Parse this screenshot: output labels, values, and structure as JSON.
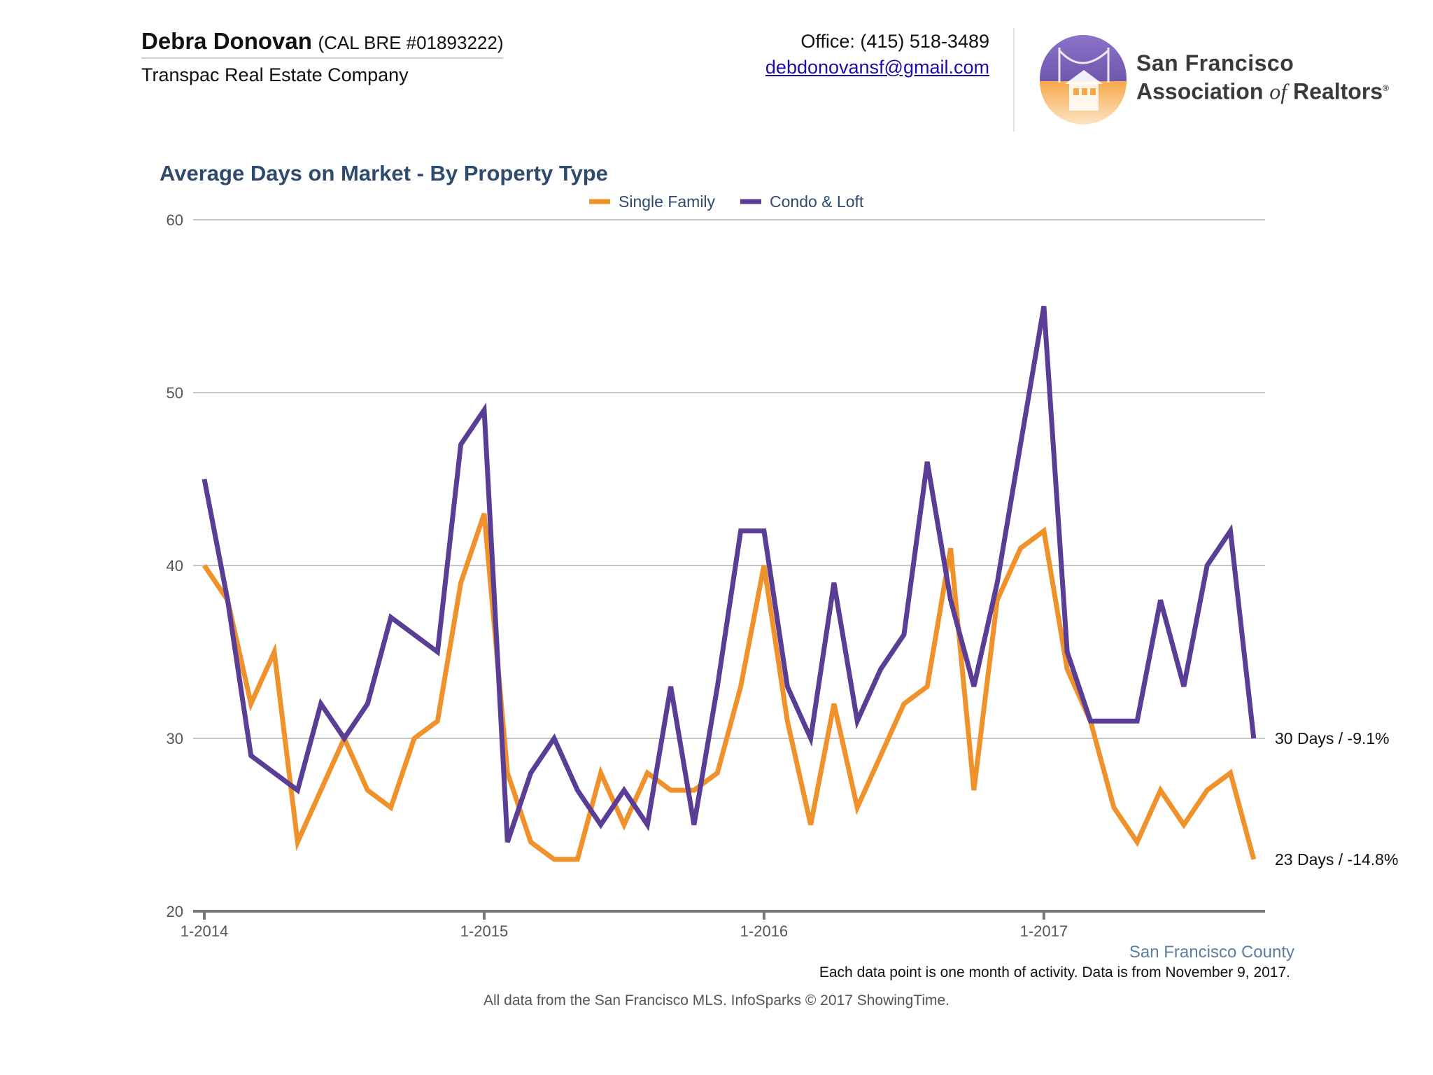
{
  "header": {
    "agent_name": "Debra Donovan",
    "agent_license": "(CAL BRE #01893222)",
    "company": "Transpac Real Estate Company",
    "office_phone": "Office: (415) 518-3489",
    "email": "debdonovansf@gmail.com",
    "logo_line1": "San Francisco",
    "logo_line2_a": "Association",
    "logo_line2_of": "of",
    "logo_line2_b": "Realtors",
    "logo_reg": "®"
  },
  "colors": {
    "single_family": "#f0922b",
    "condo_loft": "#5a3d94",
    "title": "#2e4b6d",
    "region": "#5b7fa3",
    "grid": "#c6c6c6",
    "axis": "#777777"
  },
  "chart_data": {
    "type": "line",
    "title": "Average Days on Market - By Property Type",
    "region_label": "San Francisco County",
    "ylim": [
      20,
      60
    ],
    "yticks": [
      20,
      30,
      40,
      50,
      60
    ],
    "x": [
      "1-2014",
      "2-2014",
      "3-2014",
      "4-2014",
      "5-2014",
      "6-2014",
      "7-2014",
      "8-2014",
      "9-2014",
      "10-2014",
      "11-2014",
      "12-2014",
      "1-2015",
      "2-2015",
      "3-2015",
      "4-2015",
      "5-2015",
      "6-2015",
      "7-2015",
      "8-2015",
      "9-2015",
      "10-2015",
      "11-2015",
      "12-2015",
      "1-2016",
      "2-2016",
      "3-2016",
      "4-2016",
      "5-2016",
      "6-2016",
      "7-2016",
      "8-2016",
      "9-2016",
      "10-2016",
      "11-2016",
      "12-2016",
      "1-2017",
      "2-2017",
      "3-2017",
      "4-2017",
      "5-2017",
      "6-2017",
      "7-2017",
      "8-2017",
      "9-2017",
      "10-2017"
    ],
    "x_tick_labels": [
      "1-2014",
      "1-2015",
      "1-2016",
      "1-2017"
    ],
    "grid": true,
    "legend_position": "top-center",
    "series": [
      {
        "name": "Single Family",
        "values": [
          40,
          38,
          32,
          35,
          24,
          27,
          30,
          27,
          26,
          30,
          31,
          39,
          43,
          28,
          24,
          23,
          23,
          28,
          25,
          28,
          27,
          27,
          28,
          33,
          40,
          31,
          25,
          32,
          26,
          29,
          32,
          33,
          41,
          27,
          38,
          41,
          42,
          34,
          31,
          26,
          24,
          27,
          25,
          27,
          28,
          23
        ],
        "end_label": "23 Days / -14.8%"
      },
      {
        "name": "Condo & Loft",
        "values": [
          45,
          38,
          29,
          28,
          27,
          32,
          30,
          32,
          37,
          36,
          35,
          47,
          49,
          24,
          28,
          30,
          27,
          25,
          27,
          25,
          33,
          25,
          33,
          42,
          42,
          33,
          30,
          39,
          31,
          34,
          36,
          46,
          38,
          33,
          39,
          47,
          55,
          35,
          31,
          31,
          31,
          38,
          33,
          40,
          42,
          30
        ],
        "end_label": "30 Days / -9.1%"
      }
    ]
  },
  "footer": {
    "note": "Each data point is one month of activity. Data is from November 9, 2017.",
    "source": "All data from the San Francisco MLS. InfoSparks © 2017 ShowingTime."
  }
}
